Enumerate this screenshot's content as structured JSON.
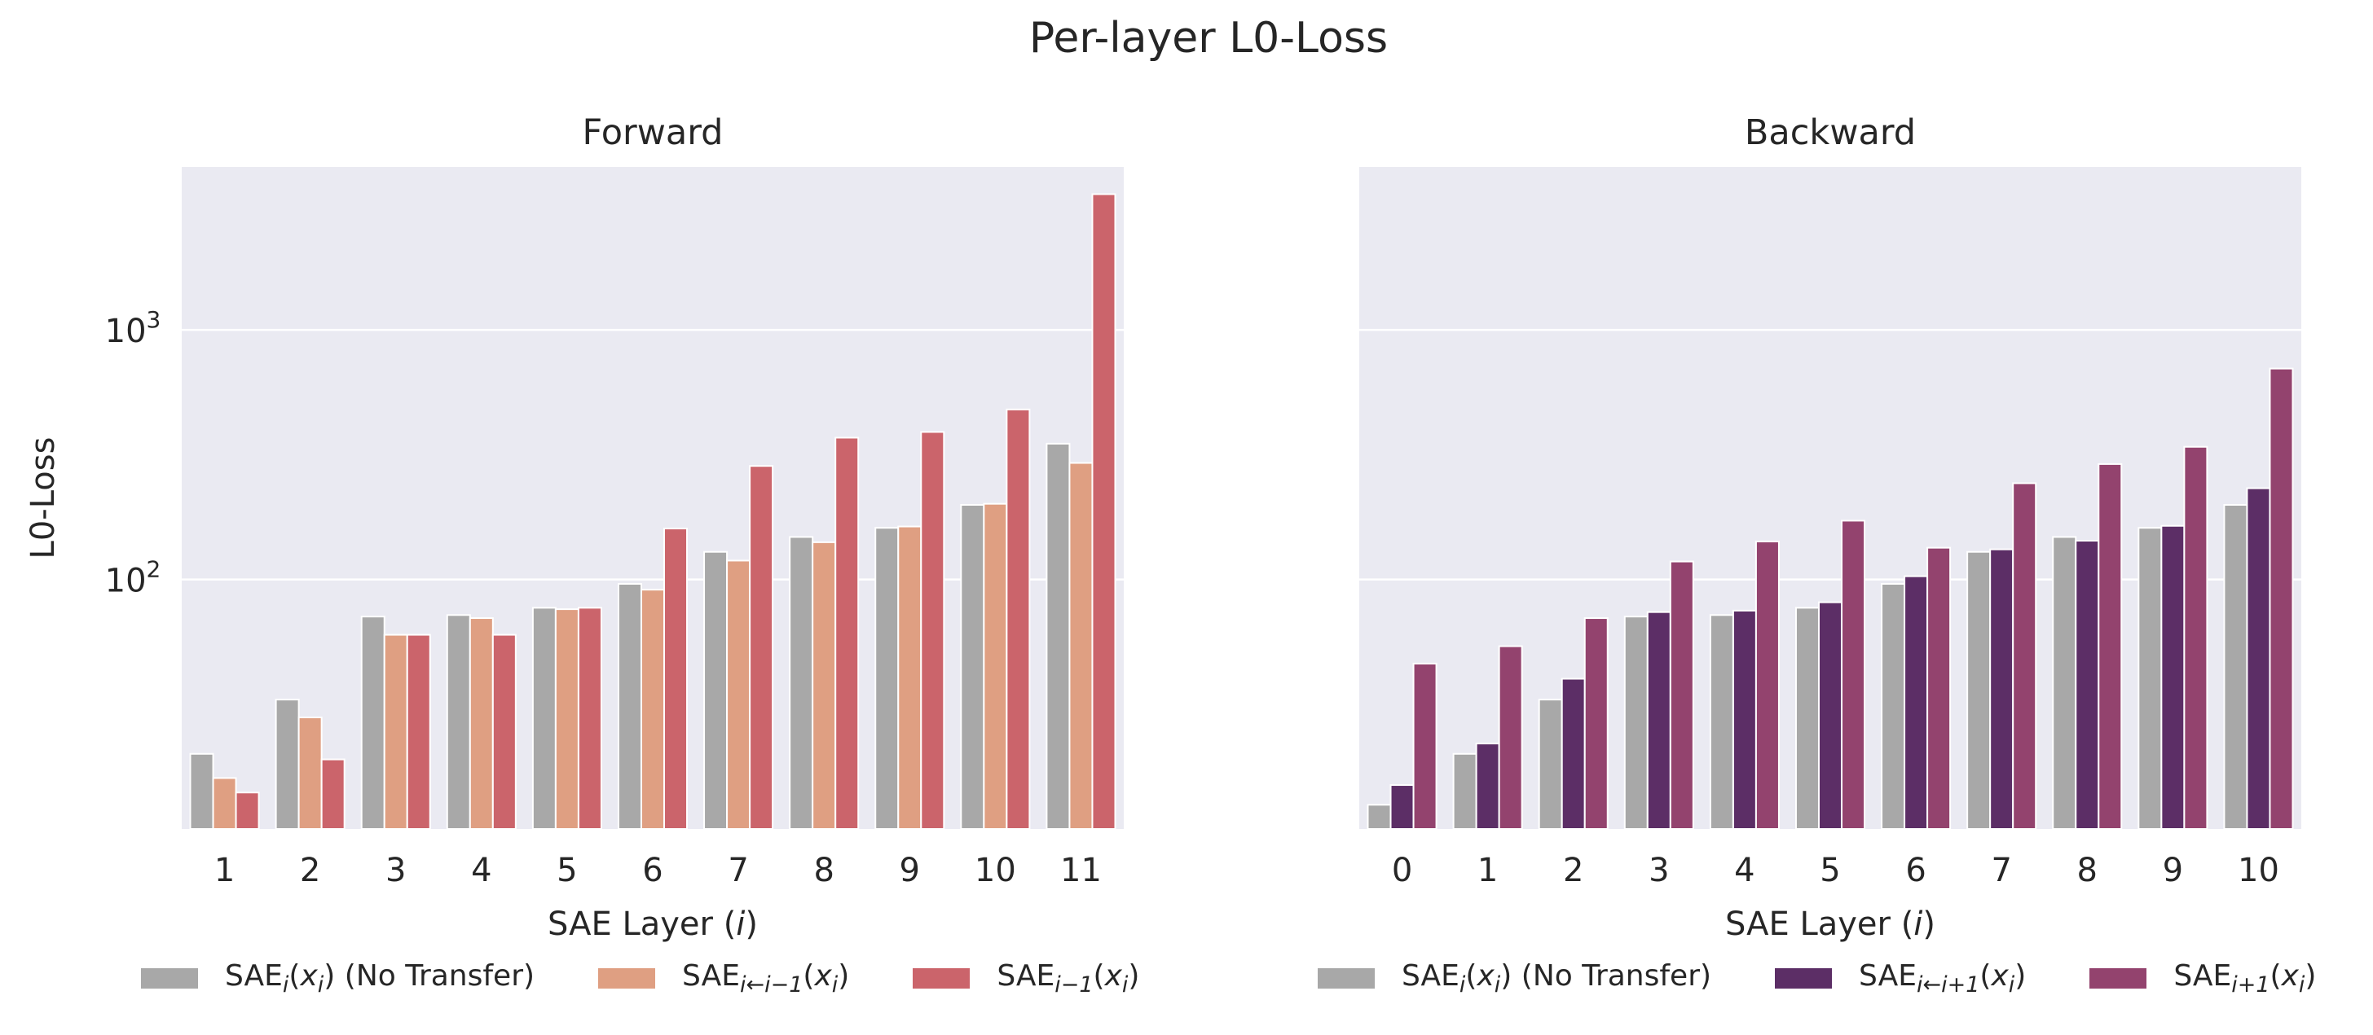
{
  "figure_title": "Per-layer L0-Loss",
  "chart_data": [
    {
      "type": "bar",
      "title": "Forward",
      "xlabel": "SAE Layer (i)",
      "ylabel": "L0-Loss",
      "yscale": "log",
      "ylim": [
        10,
        4500
      ],
      "yticks": [
        100,
        1000
      ],
      "ytick_labels": [
        {
          "base": "10",
          "exp": "2"
        },
        {
          "base": "10",
          "exp": "3"
        }
      ],
      "grid": true,
      "categories": [
        "1",
        "2",
        "3",
        "4",
        "5",
        "6",
        "7",
        "8",
        "9",
        "10",
        "11"
      ],
      "series": [
        {
          "name": "SAE_i(x_i) (No Transfer)",
          "color": "#a8a8a8",
          "values": [
            20,
            33,
            71,
            72,
            77,
            96,
            129,
            148,
            161,
            199,
            350
          ]
        },
        {
          "name": "SAE_{i←i−1}(x_i)",
          "color": "#df9f82",
          "values": [
            16,
            28,
            60,
            70,
            76,
            91,
            119,
            141,
            163,
            201,
            293
          ]
        },
        {
          "name": "SAE_{i−1}(x_i)",
          "color": "#cb646b",
          "values": [
            14,
            19,
            60,
            60,
            77,
            160,
            285,
            370,
            390,
            480,
            3500
          ]
        }
      ],
      "legend": {
        "position": "bottom",
        "items": [
          {
            "label": "SAE_i(x_i) (No Transfer)",
            "color": "#a8a8a8"
          },
          {
            "label": "SAE_{i←i−1}(x_i)",
            "color": "#df9f82"
          },
          {
            "label": "SAE_{i−1}(x_i)",
            "color": "#cb646b"
          }
        ]
      }
    },
    {
      "type": "bar",
      "title": "Backward",
      "xlabel": "SAE Layer (i)",
      "ylabel": "",
      "yscale": "log",
      "ylim": [
        10,
        4500
      ],
      "yticks": [
        100,
        1000
      ],
      "grid": true,
      "categories": [
        "0",
        "1",
        "2",
        "3",
        "4",
        "5",
        "6",
        "7",
        "8",
        "9",
        "10"
      ],
      "series": [
        {
          "name": "SAE_i(x_i) (No Transfer)",
          "color": "#a8a8a8",
          "values": [
            12.5,
            20,
            33,
            71,
            72,
            77,
            96,
            129,
            148,
            161,
            199
          ]
        },
        {
          "name": "SAE_{i←i+1}(x_i)",
          "color": "#5c2e66",
          "values": [
            15,
            22,
            40,
            74,
            75,
            81,
            103,
            132,
            143,
            164,
            232
          ]
        },
        {
          "name": "SAE_{i+1}(x_i)",
          "color": "#93436e",
          "values": [
            46,
            54,
            70,
            118,
            142,
            172,
            134,
            243,
            290,
            340,
            700
          ]
        }
      ],
      "legend": {
        "position": "bottom",
        "items": [
          {
            "label": "SAE_i(x_i) (No Transfer)",
            "color": "#a8a8a8"
          },
          {
            "label": "SAE_{i←i+1}(x_i)",
            "color": "#5c2e66"
          },
          {
            "label": "SAE_{i+1}(x_i)",
            "color": "#93436e"
          }
        ]
      }
    }
  ],
  "legend_text": {
    "left": {
      "item1": {
        "main": "SAE",
        "sub": "i",
        "arg": "x",
        "argsub": "i",
        "suffix": "(No Transfer)"
      },
      "item2": {
        "main": "SAE",
        "sub": "i←i−1",
        "arg": "x",
        "argsub": "i"
      },
      "item3": {
        "main": "SAE",
        "sub": "i−1",
        "arg": "x",
        "argsub": "i"
      }
    },
    "right": {
      "item1": {
        "main": "SAE",
        "sub": "i",
        "arg": "x",
        "argsub": "i",
        "suffix": "(No Transfer)"
      },
      "item2": {
        "main": "SAE",
        "sub": "i←i+1",
        "arg": "x",
        "argsub": "i"
      },
      "item3": {
        "main": "SAE",
        "sub": "i+1",
        "arg": "x",
        "argsub": "i"
      }
    }
  }
}
